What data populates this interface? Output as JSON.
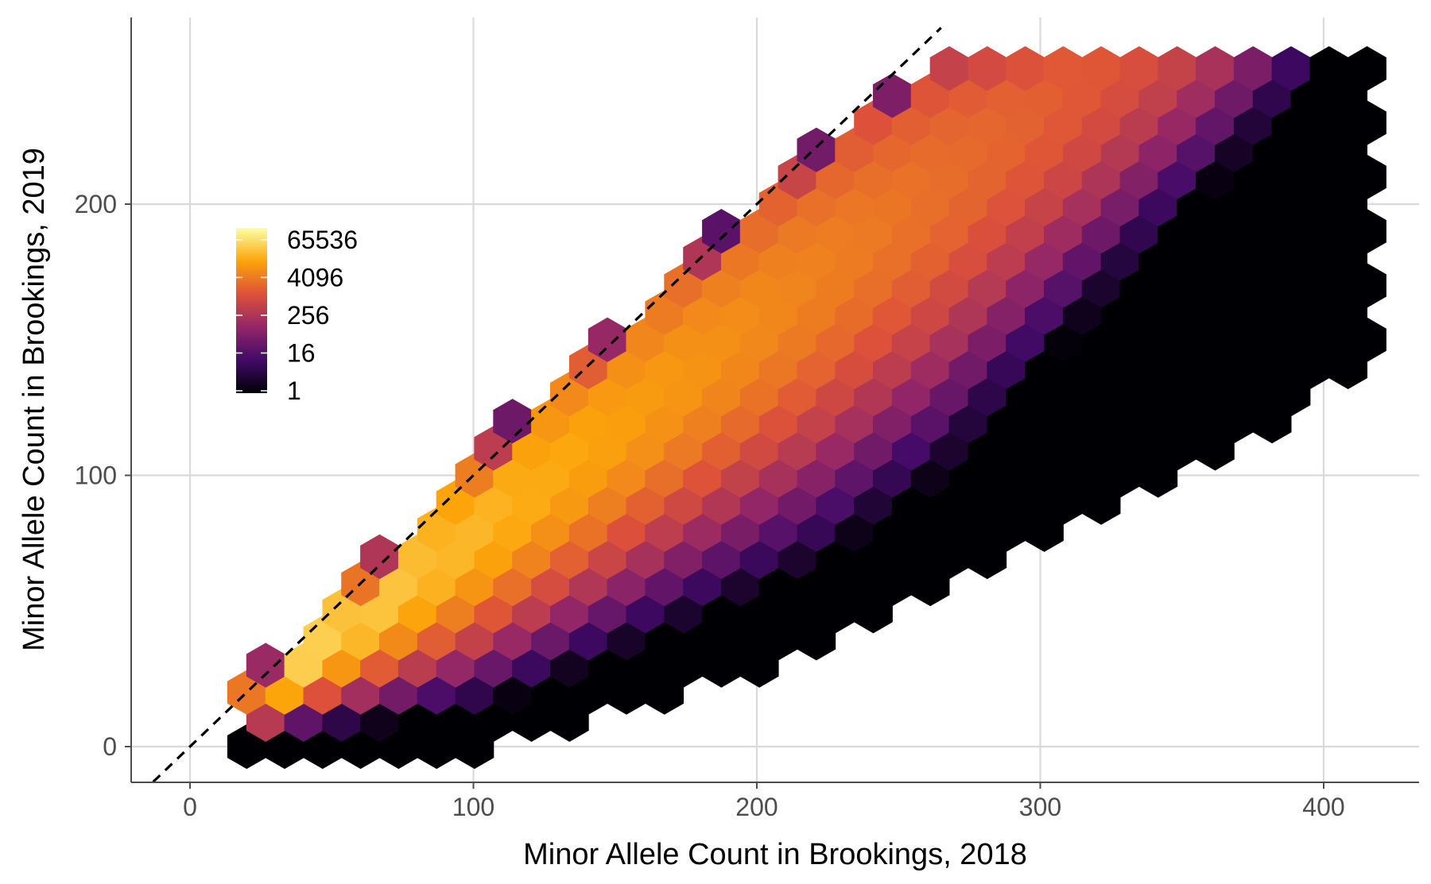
{
  "chart_data": {
    "type": "hexbin",
    "title": "",
    "xlabel": "Minor Allele Count in Brookings, 2018",
    "ylabel": "Minor Allele Count in Brookings, 2019",
    "xlim": [
      -20,
      432
    ],
    "ylim": [
      -13,
      269
    ],
    "x_ticks": [
      0,
      100,
      200,
      300,
      400
    ],
    "y_ticks": [
      0,
      100,
      200
    ],
    "x_tick_labels": [
      "0",
      "100",
      "200",
      "300",
      "400"
    ],
    "y_tick_labels": [
      "0",
      "100",
      "200"
    ],
    "grid": true,
    "reference_line": {
      "slope": 1,
      "intercept": 0,
      "style": "dashed",
      "color": "#000000"
    },
    "legend": {
      "title": "",
      "scale": "log",
      "labels": [
        "65536",
        "4096",
        "256",
        "16",
        "1"
      ],
      "values": [
        65536,
        4096,
        256,
        16,
        1
      ],
      "colors": [
        "#000004",
        "#420a68",
        "#932667",
        "#dd513a",
        "#fca50a",
        "#fcffa4"
      ],
      "placement": "top-left inside"
    },
    "density_region": {
      "description": "Hexagonal bins roughly following the diagonal band; the highest counts lie near low allele counts along y = x",
      "upper_edge": [
        [
          20,
          22
        ],
        [
          120,
          125
        ],
        [
          220,
          220
        ],
        [
          265,
          255
        ],
        [
          410,
          258
        ]
      ],
      "lower_edge": [
        [
          20,
          2
        ],
        [
          100,
          0
        ],
        [
          220,
          35
        ],
        [
          300,
          80
        ],
        [
          400,
          130
        ],
        [
          418,
          150
        ]
      ]
    }
  }
}
